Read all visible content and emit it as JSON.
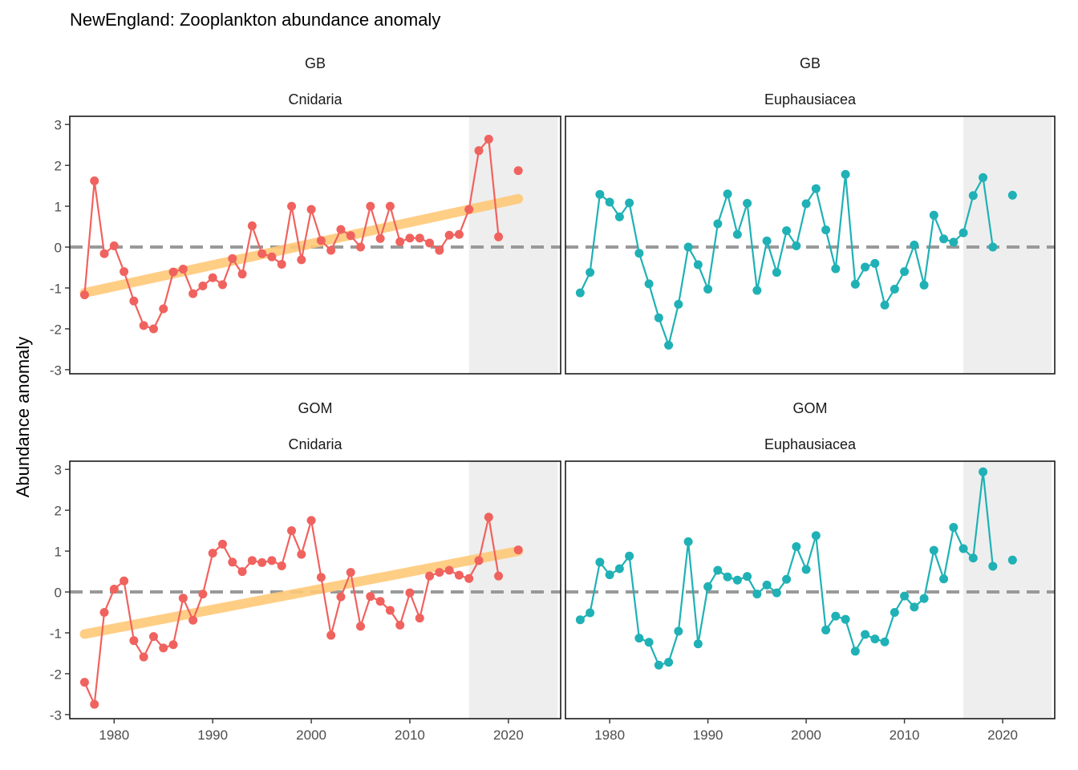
{
  "title": "NewEngland: Zooplankton abundance anomaly",
  "ylabel": "Abundance anomaly",
  "colors": {
    "Cnidaria": "#F0625E",
    "Euphausiacea": "#1FB1B5",
    "trend": "#FFC978",
    "reference_line": "#999999",
    "shade": "#EEEEEE"
  },
  "chart_data": [
    {
      "type": "line",
      "region": "GB",
      "group": "Cnidaria",
      "xlim": [
        1975.5,
        2025.3
      ],
      "ylim": [
        -3.1,
        3.2
      ],
      "shaded_x": [
        2016,
        2025
      ],
      "reference_y": 0,
      "trend": {
        "x": [
          1977,
          2021
        ],
        "y": [
          -1.12,
          1.18
        ]
      },
      "x_ticks": [
        "1980",
        "1990",
        "2000",
        "2010",
        "2020"
      ],
      "y_ticks": [
        "-3",
        "-2",
        "-1",
        "0",
        "1",
        "2",
        "3"
      ],
      "x": [
        1977,
        1978,
        1979,
        1980,
        1981,
        1982,
        1983,
        1984,
        1985,
        1986,
        1987,
        1988,
        1989,
        1990,
        1991,
        1992,
        1993,
        1994,
        1995,
        1996,
        1997,
        1998,
        1999,
        2000,
        2001,
        2002,
        2003,
        2004,
        2005,
        2006,
        2007,
        2008,
        2009,
        2010,
        2011,
        2012,
        2013,
        2014,
        2015,
        2016,
        2017,
        2018,
        2019,
        2021
      ],
      "y": [
        -1.17,
        1.62,
        -0.16,
        0.03,
        -0.6,
        -1.32,
        -1.92,
        -2.0,
        -1.51,
        -0.61,
        -0.54,
        -1.14,
        -0.95,
        -0.75,
        -0.92,
        -0.28,
        -0.66,
        0.52,
        -0.16,
        -0.24,
        -0.42,
        1.0,
        -0.31,
        0.92,
        0.16,
        -0.08,
        0.43,
        0.28,
        0.0,
        1.0,
        0.21,
        1.0,
        0.13,
        0.22,
        0.22,
        0.1,
        -0.08,
        0.29,
        0.31,
        0.92,
        2.36,
        2.64,
        0.25,
        1.87
      ]
    },
    {
      "type": "line",
      "region": "GB",
      "group": "Euphausiacea",
      "xlim": [
        1975.5,
        2025.3
      ],
      "ylim": [
        -3.1,
        3.2
      ],
      "shaded_x": [
        2016,
        2025
      ],
      "reference_y": 0,
      "x_ticks": [
        "1980",
        "1990",
        "2000",
        "2010",
        "2020"
      ],
      "y_ticks": [
        "-3",
        "-2",
        "-1",
        "0",
        "1",
        "2",
        "3"
      ],
      "x": [
        1977,
        1978,
        1979,
        1980,
        1981,
        1982,
        1983,
        1984,
        1985,
        1986,
        1987,
        1988,
        1989,
        1990,
        1991,
        1992,
        1993,
        1994,
        1995,
        1996,
        1997,
        1998,
        1999,
        2000,
        2001,
        2002,
        2003,
        2004,
        2005,
        2006,
        2007,
        2008,
        2009,
        2010,
        2011,
        2012,
        2013,
        2014,
        2015,
        2016,
        2017,
        2018,
        2019,
        2021
      ],
      "y": [
        -1.12,
        -0.62,
        1.29,
        1.1,
        0.74,
        1.08,
        -0.15,
        -0.9,
        -1.73,
        -2.4,
        -1.4,
        0.0,
        -0.43,
        -1.03,
        0.57,
        1.3,
        0.31,
        1.07,
        -1.06,
        0.15,
        -0.62,
        0.4,
        0.03,
        1.06,
        1.43,
        0.42,
        -0.53,
        1.78,
        -0.91,
        -0.49,
        -0.4,
        -1.42,
        -1.03,
        -0.6,
        0.05,
        -0.93,
        0.78,
        0.2,
        0.12,
        0.35,
        1.26,
        1.7,
        0.0,
        1.27
      ]
    },
    {
      "type": "line",
      "region": "GOM",
      "group": "Cnidaria",
      "xlim": [
        1975.5,
        2025.3
      ],
      "ylim": [
        -3.1,
        3.2
      ],
      "shaded_x": [
        2016,
        2025
      ],
      "reference_y": 0,
      "trend": {
        "x": [
          1977,
          2021
        ],
        "y": [
          -1.03,
          1.0
        ]
      },
      "x_ticks": [
        "1980",
        "1990",
        "2000",
        "2010",
        "2020"
      ],
      "y_ticks": [
        "-3",
        "-2",
        "-1",
        "0",
        "1",
        "2",
        "3"
      ],
      "x": [
        1977,
        1978,
        1979,
        1980,
        1981,
        1982,
        1983,
        1984,
        1985,
        1986,
        1987,
        1988,
        1989,
        1990,
        1991,
        1992,
        1993,
        1994,
        1995,
        1996,
        1997,
        1998,
        1999,
        2000,
        2001,
        2002,
        2003,
        2004,
        2005,
        2006,
        2007,
        2008,
        2009,
        2010,
        2011,
        2012,
        2013,
        2014,
        2015,
        2016,
        2017,
        2018,
        2019,
        2021
      ],
      "y": [
        -2.21,
        -2.75,
        -0.5,
        0.07,
        0.27,
        -1.19,
        -1.59,
        -1.09,
        -1.37,
        -1.29,
        -0.15,
        -0.69,
        -0.05,
        0.95,
        1.17,
        0.73,
        0.5,
        0.77,
        0.72,
        0.77,
        0.64,
        1.5,
        0.92,
        1.75,
        0.36,
        -1.06,
        -0.12,
        0.48,
        -0.84,
        -0.11,
        -0.23,
        -0.45,
        -0.81,
        -0.02,
        -0.64,
        0.39,
        0.48,
        0.53,
        0.41,
        0.33,
        0.77,
        1.83,
        0.39,
        1.03
      ]
    },
    {
      "type": "line",
      "region": "GOM",
      "group": "Euphausiacea",
      "xlim": [
        1975.5,
        2025.3
      ],
      "ylim": [
        -3.1,
        3.2
      ],
      "shaded_x": [
        2016,
        2025
      ],
      "reference_y": 0,
      "x_ticks": [
        "1980",
        "1990",
        "2000",
        "2010",
        "2020"
      ],
      "y_ticks": [
        "-3",
        "-2",
        "-1",
        "0",
        "1",
        "2",
        "3"
      ],
      "x": [
        1977,
        1978,
        1979,
        1980,
        1981,
        1982,
        1983,
        1984,
        1985,
        1986,
        1987,
        1988,
        1989,
        1990,
        1991,
        1992,
        1993,
        1994,
        1995,
        1996,
        1997,
        1998,
        1999,
        2000,
        2001,
        2002,
        2003,
        2004,
        2005,
        2006,
        2007,
        2008,
        2009,
        2010,
        2011,
        2012,
        2013,
        2014,
        2015,
        2016,
        2017,
        2018,
        2019,
        2021
      ],
      "y": [
        -0.68,
        -0.51,
        0.73,
        0.42,
        0.57,
        0.88,
        -1.13,
        -1.23,
        -1.79,
        -1.72,
        -0.96,
        1.23,
        -1.27,
        0.13,
        0.53,
        0.37,
        0.29,
        0.38,
        -0.05,
        0.17,
        -0.02,
        0.31,
        1.11,
        0.55,
        1.38,
        -0.93,
        -0.59,
        -0.67,
        -1.45,
        -1.04,
        -1.15,
        -1.22,
        -0.5,
        -0.1,
        -0.37,
        -0.16,
        1.02,
        0.32,
        1.58,
        1.06,
        0.83,
        2.94,
        0.63,
        0.78
      ]
    }
  ]
}
